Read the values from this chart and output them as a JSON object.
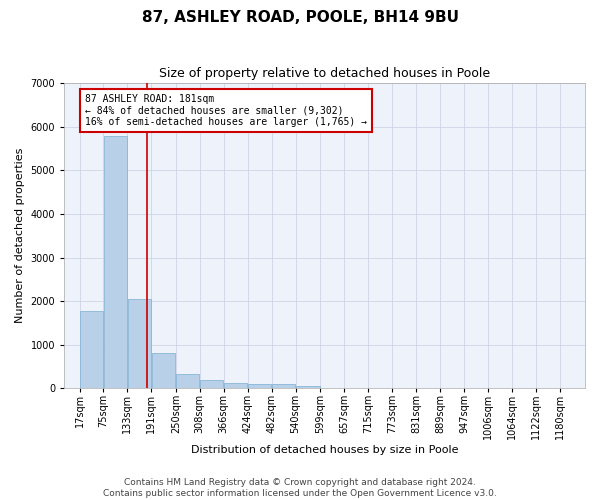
{
  "title": "87, ASHLEY ROAD, POOLE, BH14 9BU",
  "subtitle": "Size of property relative to detached houses in Poole",
  "xlabel": "Distribution of detached houses by size in Poole",
  "ylabel": "Number of detached properties",
  "footer_line1": "Contains HM Land Registry data © Crown copyright and database right 2024.",
  "footer_line2": "Contains public sector information licensed under the Open Government Licence v3.0.",
  "annotation_line1": "87 ASHLEY ROAD: 181sqm",
  "annotation_line2": "← 84% of detached houses are smaller (9,302)",
  "annotation_line3": "16% of semi-detached houses are larger (1,765) →",
  "bar_color": "#b8d0e8",
  "bar_edge_color": "#7aafd4",
  "vline_color": "#cc0000",
  "vline_x": 181,
  "annotation_box_color": "#cc0000",
  "bin_edges": [
    17,
    75,
    133,
    191,
    250,
    308,
    366,
    424,
    482,
    540,
    599,
    657,
    715,
    773,
    831,
    889,
    947,
    1006,
    1064,
    1122,
    1180
  ],
  "values": [
    1780,
    5780,
    2060,
    800,
    340,
    200,
    130,
    110,
    100,
    65,
    0,
    0,
    0,
    0,
    0,
    0,
    0,
    0,
    0,
    0,
    0
  ],
  "ylim": [
    0,
    7000
  ],
  "yticks": [
    0,
    1000,
    2000,
    3000,
    4000,
    5000,
    6000,
    7000
  ],
  "xlim_left": -20,
  "xlim_right": 1240,
  "background_color": "#eef2fb",
  "grid_color": "#c8cfe0",
  "title_fontsize": 11,
  "subtitle_fontsize": 9,
  "axis_label_fontsize": 8,
  "tick_fontsize": 7,
  "annotation_fontsize": 7,
  "footer_fontsize": 6.5
}
